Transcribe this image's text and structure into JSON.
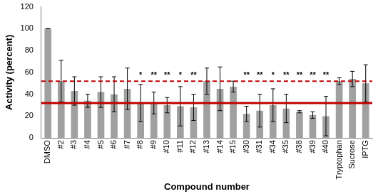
{
  "chart_data": {
    "type": "bar",
    "categories": [
      "DMSO",
      "#2",
      "#3",
      "#4",
      "#5",
      "#6",
      "#7",
      "#8",
      "#9",
      "#10",
      "#11",
      "#12",
      "#13",
      "#14",
      "#15",
      "#30",
      "#31",
      "#34",
      "#35",
      "#38",
      "#39",
      "#40",
      "Tryptophan",
      "Sucrose",
      "IPTG"
    ],
    "values": [
      100,
      52,
      43,
      34,
      42,
      40,
      45,
      32,
      32,
      30,
      29,
      28,
      52,
      45,
      47,
      22,
      25,
      30,
      27,
      24,
      21,
      20,
      52,
      54,
      50
    ],
    "errors": [
      0,
      19,
      13,
      6,
      14,
      16,
      19,
      17,
      10,
      7,
      18,
      12,
      12,
      20,
      5,
      7,
      15,
      15,
      13,
      1,
      3,
      18,
      3,
      7,
      17
    ],
    "annotations": [
      null,
      null,
      null,
      null,
      null,
      null,
      null,
      "*",
      "**",
      "**",
      "*",
      "**",
      null,
      null,
      null,
      "**",
      "**",
      "*",
      "**",
      "**",
      "**",
      "**",
      null,
      null,
      null
    ],
    "reference_lines": [
      {
        "value": 32,
        "color": "#c00000",
        "line_style": "solid"
      },
      {
        "value": 52,
        "color": "#c00000",
        "line_style": "dashed"
      }
    ],
    "color": "#a0a0a0",
    "x_label": "Compound number",
    "y_label": "Activity (percent)",
    "ylim": [
      0,
      120
    ],
    "yticks": [
      0,
      20,
      40,
      60,
      80,
      100,
      120
    ],
    "grid": false
  }
}
